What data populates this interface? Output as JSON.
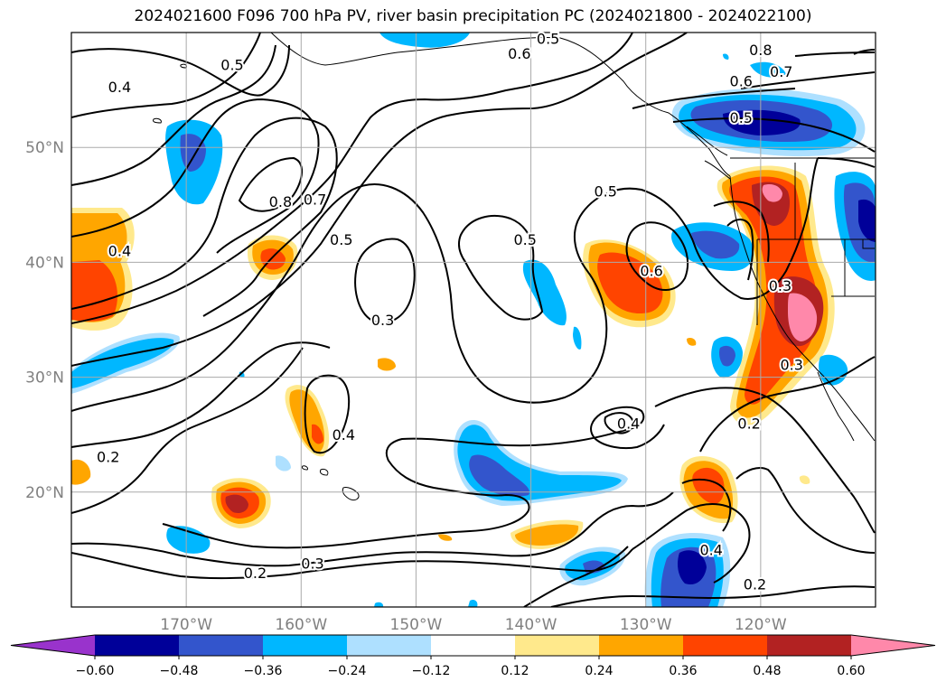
{
  "title": "2024021600 F096 700 hPa PV, river basin precipitation PC (2024021800 - 2024022100)",
  "map": {
    "lon_range": [
      -180,
      -110
    ],
    "lat_range": [
      10,
      60
    ],
    "lat_ticks": [
      {
        "value": 20,
        "label": "20°N"
      },
      {
        "value": 30,
        "label": "30°N"
      },
      {
        "value": 40,
        "label": "40°N"
      },
      {
        "value": 50,
        "label": "50°N"
      }
    ],
    "lon_ticks": [
      {
        "value": -170,
        "label": "170°W"
      },
      {
        "value": -160,
        "label": "160°W"
      },
      {
        "value": -150,
        "label": "150°W"
      },
      {
        "value": -140,
        "label": "140°W"
      },
      {
        "value": -130,
        "label": "130°W"
      },
      {
        "value": -120,
        "label": "120°W"
      }
    ],
    "grid": true,
    "contour_labels": [
      {
        "text": "0.4",
        "lon": -175.8,
        "lat": 55.3
      },
      {
        "text": "0.5",
        "lon": -166.0,
        "lat": 57.2
      },
      {
        "text": "0.6",
        "lon": -141.0,
        "lat": 58.2
      },
      {
        "text": "0.5",
        "lon": -138.5,
        "lat": 59.5
      },
      {
        "text": "0.8",
        "lon": -120.0,
        "lat": 58.5
      },
      {
        "text": "0.7",
        "lon": -118.2,
        "lat": 56.6
      },
      {
        "text": "0.6",
        "lon": -121.7,
        "lat": 55.8
      },
      {
        "text": "0.5",
        "lon": -121.7,
        "lat": 52.6
      },
      {
        "text": "0.8",
        "lon": -161.8,
        "lat": 45.3
      },
      {
        "text": "0.7",
        "lon": -158.8,
        "lat": 45.5
      },
      {
        "text": "0.5",
        "lon": -156.5,
        "lat": 42.0
      },
      {
        "text": "0.4",
        "lon": -175.8,
        "lat": 41.0
      },
      {
        "text": "0.5",
        "lon": -133.5,
        "lat": 46.2
      },
      {
        "text": "0.5",
        "lon": -140.5,
        "lat": 42.0
      },
      {
        "text": "0.6",
        "lon": -129.5,
        "lat": 39.3
      },
      {
        "text": "0.3",
        "lon": -118.3,
        "lat": 38.0
      },
      {
        "text": "0.3",
        "lon": -152.9,
        "lat": 35.0
      },
      {
        "text": "0.3",
        "lon": -117.3,
        "lat": 31.1
      },
      {
        "text": "0.4",
        "lon": -156.3,
        "lat": 25.0
      },
      {
        "text": "0.4",
        "lon": -131.5,
        "lat": 26.0
      },
      {
        "text": "0.2",
        "lon": -121.0,
        "lat": 26.0
      },
      {
        "text": "0.2",
        "lon": -176.8,
        "lat": 23.1
      },
      {
        "text": "0.2",
        "lon": -164.0,
        "lat": 13.0
      },
      {
        "text": "0.3",
        "lon": -159.0,
        "lat": 13.8
      },
      {
        "text": "0.4",
        "lon": -124.3,
        "lat": 15.0
      },
      {
        "text": "0.2",
        "lon": -120.5,
        "lat": 12.0
      }
    ]
  },
  "colorbar": {
    "colors": [
      "#9933cc",
      "#000099",
      "#3355cc",
      "#00b7ff",
      "#aee0ff",
      "#ffffff",
      "#ffe98c",
      "#ffa600",
      "#ff4400",
      "#b22222",
      "#ff88aa"
    ],
    "tick_labels": [
      "−0.60",
      "−0.48",
      "−0.36",
      "−0.24",
      "−0.12",
      "0.12",
      "0.24",
      "0.36",
      "0.48",
      "0.60"
    ]
  }
}
